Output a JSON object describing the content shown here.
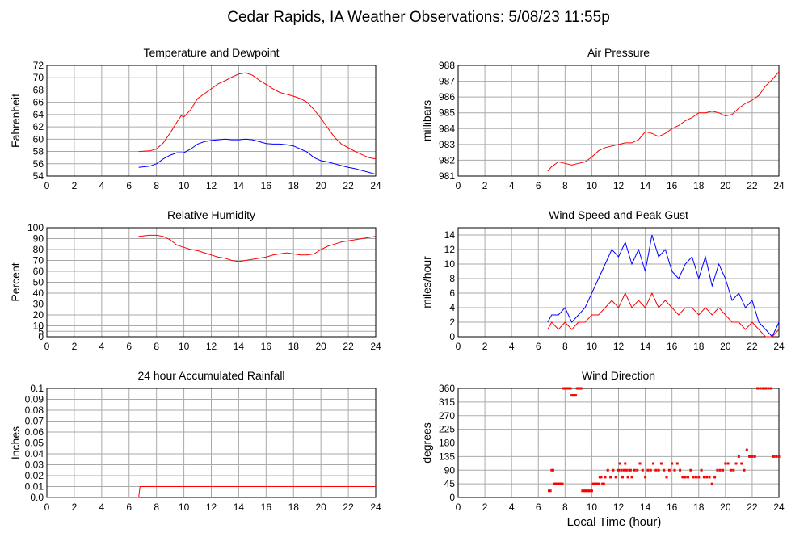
{
  "page": {
    "title": "Cedar Rapids, IA Weather Observations: 5/08/23 11:55p",
    "xlabel": "Local Time (hour)"
  },
  "chart_data": [
    {
      "id": "temp",
      "type": "line",
      "title": "Temperature and Dewpoint",
      "ylabel": "Fahrenheit",
      "xlim": [
        0,
        24
      ],
      "ylim": [
        54,
        72
      ],
      "yticks": [
        54,
        56,
        58,
        60,
        62,
        64,
        66,
        68,
        70,
        72
      ],
      "xticks": [
        0,
        2,
        4,
        6,
        8,
        10,
        12,
        14,
        16,
        18,
        20,
        22,
        24
      ],
      "grid": true,
      "series": [
        {
          "color": "#ff0000",
          "x": [
            6.7,
            7.5,
            8.0,
            8.5,
            9.0,
            9.5,
            9.8,
            10.0,
            10.5,
            11.0,
            11.5,
            12.0,
            12.5,
            13.0,
            13.5,
            14.0,
            14.5,
            15.0,
            15.5,
            16.0,
            16.5,
            17.0,
            17.5,
            18.0,
            18.5,
            19.0,
            19.5,
            20.0,
            20.5,
            21.0,
            21.5,
            22.0,
            22.5,
            23.0,
            23.5,
            24.0
          ],
          "y": [
            58.0,
            58.1,
            58.4,
            59.4,
            61.0,
            62.8,
            63.8,
            63.6,
            64.8,
            66.6,
            67.4,
            68.2,
            69.0,
            69.5,
            70.1,
            70.6,
            70.8,
            70.4,
            69.6,
            68.9,
            68.2,
            67.6,
            67.3,
            67.0,
            66.6,
            66.0,
            64.8,
            63.4,
            61.8,
            60.3,
            59.2,
            58.6,
            58.0,
            57.5,
            57.0,
            56.8
          ]
        },
        {
          "color": "#0000ff",
          "x": [
            6.7,
            7.5,
            8.0,
            8.5,
            9.0,
            9.5,
            10.0,
            10.5,
            11.0,
            11.5,
            12.0,
            12.5,
            13.0,
            13.5,
            14.0,
            14.5,
            15.0,
            15.5,
            16.0,
            16.5,
            17.0,
            17.5,
            18.0,
            18.5,
            19.0,
            19.5,
            20.0,
            20.5,
            21.0,
            21.5,
            22.0,
            22.5,
            23.0,
            23.5,
            24.0
          ],
          "y": [
            55.4,
            55.6,
            56.0,
            56.8,
            57.4,
            57.8,
            57.8,
            58.4,
            59.2,
            59.6,
            59.8,
            59.9,
            60.0,
            59.9,
            59.9,
            60.0,
            59.9,
            59.6,
            59.3,
            59.2,
            59.2,
            59.1,
            58.9,
            58.4,
            57.9,
            57.0,
            56.5,
            56.3,
            56.0,
            55.7,
            55.4,
            55.2,
            54.9,
            54.6,
            54.3
          ]
        }
      ]
    },
    {
      "id": "pressure",
      "type": "line",
      "title": "Air Pressure",
      "ylabel": "millibars",
      "xlim": [
        0,
        24
      ],
      "ylim": [
        981,
        988
      ],
      "yticks": [
        981,
        982,
        983,
        984,
        985,
        986,
        987,
        988
      ],
      "xticks": [
        0,
        2,
        4,
        6,
        8,
        10,
        12,
        14,
        16,
        18,
        20,
        22,
        24
      ],
      "grid": true,
      "series": [
        {
          "color": "#ff0000",
          "x": [
            6.7,
            7.0,
            7.5,
            8.0,
            8.5,
            9.0,
            9.5,
            10.0,
            10.5,
            11.0,
            11.5,
            12.0,
            12.5,
            13.0,
            13.5,
            14.0,
            14.5,
            15.0,
            15.5,
            16.0,
            16.5,
            17.0,
            17.5,
            18.0,
            18.5,
            19.0,
            19.5,
            20.0,
            20.5,
            21.0,
            21.5,
            22.0,
            22.5,
            23.0,
            23.5,
            24.0
          ],
          "y": [
            981.3,
            981.6,
            981.9,
            981.8,
            981.7,
            981.8,
            981.9,
            982.2,
            982.6,
            982.8,
            982.9,
            983.0,
            983.1,
            983.1,
            983.3,
            983.8,
            983.7,
            983.5,
            983.7,
            984.0,
            984.2,
            984.5,
            984.7,
            985.0,
            985.0,
            985.1,
            985.0,
            984.8,
            984.9,
            985.3,
            985.6,
            985.8,
            986.1,
            986.7,
            987.1,
            987.6
          ]
        }
      ]
    },
    {
      "id": "humidity",
      "type": "line",
      "title": "Relative Humidity",
      "ylabel": "Percent",
      "xlim": [
        0,
        24
      ],
      "ylim": [
        0,
        100
      ],
      "yticks": [
        0,
        5,
        10,
        20,
        30,
        40,
        50,
        60,
        70,
        80,
        90,
        100
      ],
      "xticks": [
        0,
        2,
        4,
        6,
        8,
        10,
        12,
        14,
        16,
        18,
        20,
        22,
        24
      ],
      "grid": true,
      "series": [
        {
          "color": "#ff0000",
          "x": [
            6.7,
            7.5,
            8.0,
            8.5,
            9.0,
            9.5,
            10.0,
            10.5,
            11.0,
            11.5,
            12.0,
            12.5,
            13.0,
            13.5,
            14.0,
            14.5,
            15.0,
            15.5,
            16.0,
            16.5,
            17.0,
            17.5,
            18.0,
            18.5,
            19.0,
            19.5,
            20.0,
            20.5,
            21.0,
            21.5,
            22.0,
            22.5,
            23.0,
            23.5,
            24.0
          ],
          "y": [
            92,
            93,
            93,
            92,
            89,
            84,
            82,
            80,
            79,
            77,
            75,
            73,
            72,
            70,
            69,
            70,
            71,
            72,
            73,
            75,
            76,
            77,
            76,
            75,
            75,
            76,
            80,
            83,
            85,
            87,
            88,
            89,
            90,
            91,
            92
          ]
        }
      ]
    },
    {
      "id": "wind",
      "type": "line",
      "title": "Wind Speed and Peak Gust",
      "ylabel": "miles/hour",
      "xlim": [
        0,
        24
      ],
      "ylim": [
        0,
        15
      ],
      "yticks": [
        0,
        2,
        4,
        6,
        8,
        10,
        12,
        14
      ],
      "xticks": [
        0,
        2,
        4,
        6,
        8,
        10,
        12,
        14,
        16,
        18,
        20,
        22,
        24
      ],
      "grid": true,
      "series": [
        {
          "color": "#0000ff",
          "x": [
            6.7,
            7.0,
            7.5,
            8.0,
            8.5,
            9.0,
            9.5,
            10.0,
            10.5,
            11.0,
            11.5,
            12.0,
            12.5,
            13.0,
            13.5,
            14.0,
            14.5,
            15.0,
            15.5,
            16.0,
            16.5,
            17.0,
            17.5,
            18.0,
            18.5,
            19.0,
            19.5,
            20.0,
            20.5,
            21.0,
            21.5,
            22.0,
            22.5,
            23.0,
            23.5,
            24.0
          ],
          "y": [
            2,
            3,
            3,
            4,
            2,
            3,
            4,
            6,
            8,
            10,
            12,
            11,
            13,
            10,
            12,
            9,
            14,
            11,
            12,
            9,
            8,
            10,
            11,
            8,
            11,
            7,
            10,
            8,
            5,
            6,
            4,
            5,
            2,
            1,
            0,
            2
          ]
        },
        {
          "color": "#ff0000",
          "x": [
            6.7,
            7.0,
            7.5,
            8.0,
            8.5,
            9.0,
            9.5,
            10.0,
            10.5,
            11.0,
            11.5,
            12.0,
            12.5,
            13.0,
            13.5,
            14.0,
            14.5,
            15.0,
            15.5,
            16.0,
            16.5,
            17.0,
            17.5,
            18.0,
            18.5,
            19.0,
            19.5,
            20.0,
            20.5,
            21.0,
            21.5,
            22.0,
            22.5,
            23.0,
            23.5,
            24.0
          ],
          "y": [
            1,
            2,
            1,
            2,
            1,
            2,
            2,
            3,
            3,
            4,
            5,
            4,
            6,
            4,
            5,
            4,
            6,
            4,
            5,
            4,
            3,
            4,
            4,
            3,
            4,
            3,
            4,
            3,
            2,
            2,
            1,
            2,
            1,
            0,
            0,
            1
          ]
        }
      ]
    },
    {
      "id": "rain",
      "type": "line",
      "title": "24 hour Accumulated Rainfall",
      "ylabel": "Inches",
      "xlim": [
        0,
        24
      ],
      "ylim": [
        0,
        0.1
      ],
      "yticks": [
        0.0,
        0.01,
        0.02,
        0.03,
        0.04,
        0.05,
        0.06,
        0.07,
        0.08,
        0.09,
        0.1
      ],
      "ytick_labels": [
        "0.0",
        "0.01",
        "0.02",
        "0.03",
        "0.04",
        "0.05",
        "0.06",
        "0.07",
        "0.08",
        "0.09",
        "0.1"
      ],
      "xticks": [
        0,
        2,
        4,
        6,
        8,
        10,
        12,
        14,
        16,
        18,
        20,
        22,
        24
      ],
      "grid": true,
      "series": [
        {
          "color": "#ff0000",
          "x": [
            0,
            6.7,
            6.8,
            24
          ],
          "y": [
            0,
            0,
            0.01,
            0.01
          ]
        }
      ]
    },
    {
      "id": "direction",
      "type": "scatter",
      "title": "Wind Direction",
      "ylabel": "degrees",
      "xlim": [
        0,
        24
      ],
      "ylim": [
        0,
        360
      ],
      "yticks": [
        0,
        45,
        90,
        135,
        180,
        225,
        270,
        315,
        360
      ],
      "xticks": [
        0,
        2,
        4,
        6,
        8,
        10,
        12,
        14,
        16,
        18,
        20,
        22,
        24
      ],
      "grid": true,
      "series": [
        {
          "color": "#ff0000",
          "x": [
            6.8,
            6.9,
            7.0,
            7.1,
            7.2,
            7.3,
            7.4,
            7.5,
            7.6,
            7.7,
            7.8,
            7.9,
            8.0,
            8.1,
            8.2,
            8.3,
            8.4,
            8.5,
            8.6,
            8.7,
            8.8,
            8.9,
            9.0,
            9.1,
            9.2,
            9.3,
            9.4,
            9.5,
            9.6,
            9.7,
            9.8,
            9.9,
            10.0,
            10.1,
            10.2,
            10.3,
            10.4,
            10.5,
            10.6,
            10.7,
            10.8,
            10.9,
            11.0,
            11.2,
            11.4,
            11.6,
            11.8,
            12.0,
            12.1,
            12.2,
            12.3,
            12.4,
            12.5,
            12.6,
            12.7,
            12.8,
            12.9,
            13.0,
            13.2,
            13.4,
            13.6,
            13.8,
            14.0,
            14.2,
            14.4,
            14.6,
            14.8,
            15.0,
            15.2,
            15.4,
            15.6,
            15.8,
            16.0,
            16.2,
            16.4,
            16.6,
            16.8,
            17.0,
            17.2,
            17.4,
            17.6,
            17.8,
            18.0,
            18.2,
            18.4,
            18.6,
            18.8,
            19.0,
            19.2,
            19.4,
            19.6,
            19.8,
            20.0,
            20.2,
            20.4,
            20.6,
            20.8,
            21.0,
            21.2,
            21.4,
            21.6,
            21.8,
            22.0,
            22.2,
            22.4,
            22.6,
            22.8,
            23.0,
            23.2,
            23.4,
            23.6,
            23.8,
            24.0
          ],
          "y": [
            22,
            22,
            90,
            90,
            45,
            45,
            45,
            45,
            45,
            45,
            45,
            360,
            360,
            360,
            360,
            360,
            360,
            337,
            337,
            337,
            337,
            360,
            360,
            360,
            360,
            22,
            22,
            22,
            22,
            22,
            22,
            22,
            22,
            45,
            45,
            45,
            45,
            45,
            67,
            67,
            45,
            45,
            67,
            90,
            67,
            90,
            67,
            90,
            112,
            90,
            67,
            90,
            112,
            90,
            67,
            90,
            90,
            67,
            90,
            90,
            112,
            90,
            67,
            90,
            90,
            112,
            90,
            90,
            112,
            90,
            67,
            90,
            112,
            90,
            112,
            90,
            67,
            67,
            67,
            90,
            67,
            67,
            67,
            90,
            67,
            67,
            67,
            45,
            67,
            90,
            90,
            90,
            112,
            112,
            90,
            90,
            112,
            135,
            112,
            90,
            157,
            135,
            135,
            135,
            360,
            360,
            360,
            360,
            360,
            360,
            135,
            135,
            135
          ]
        }
      ]
    }
  ]
}
